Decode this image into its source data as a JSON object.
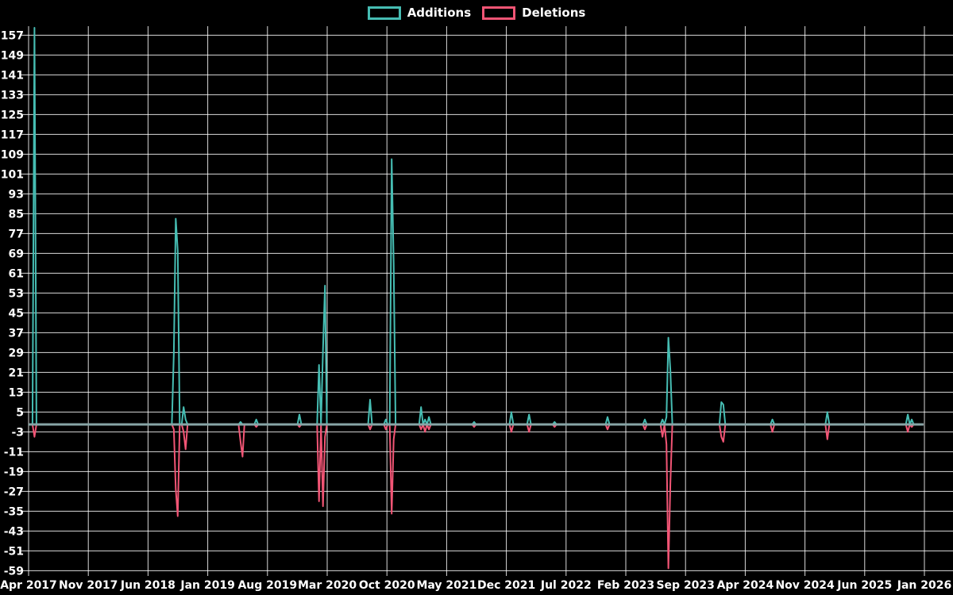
{
  "legend": {
    "additions_label": "Additions",
    "deletions_label": "Deletions"
  },
  "colors": {
    "additions": "#46bdb3",
    "deletions": "#f25575",
    "zero_baseline": "#87a5a6",
    "grid": "#ffffff",
    "background": "#000000",
    "text": "#ffffff"
  },
  "chart_data": {
    "type": "line",
    "title": "",
    "xlabel": "",
    "ylabel": "",
    "legend_position": "top-center",
    "grid": true,
    "y_ticks": [
      157,
      149,
      141,
      133,
      125,
      117,
      109,
      101,
      93,
      85,
      77,
      69,
      61,
      53,
      45,
      37,
      29,
      21,
      13,
      5,
      -3,
      -11,
      -19,
      -27,
      -35,
      -43,
      -51,
      -59
    ],
    "ylim": [
      -59,
      161
    ],
    "x_tick_labels": [
      "Apr 2017",
      "Nov 2017",
      "Jun 2018",
      "Jan 2019",
      "Aug 2019",
      "Mar 2020",
      "Oct 2020",
      "May 2021",
      "Dec 2021",
      "Jul 2022",
      "Feb 2023",
      "Sep 2023",
      "Apr 2024",
      "Nov 2024",
      "Jun 2025",
      "Jan 2026"
    ],
    "weeks_per_x_tick": 30.43,
    "total_weeks": 456,
    "series": [
      {
        "name": "Additions",
        "color": "#46bdb3",
        "baseline_value": 0
      },
      {
        "name": "Deletions",
        "color": "#f25575",
        "baseline_value": 0
      }
    ],
    "note": "Weekly values; flat at 0 except listed events. First additions peak is clipped at the top of the plot (~160).",
    "events": [
      {
        "week": 3,
        "approx_date": "Apr 2017",
        "additions": 160,
        "deletions": -5
      },
      {
        "week": 74,
        "approx_date": "Sep 2018",
        "additions": 29,
        "deletions": -2
      },
      {
        "week": 75,
        "approx_date": "Sep 2018",
        "additions": 83,
        "deletions": -26
      },
      {
        "week": 76,
        "approx_date": "Sep 2018",
        "additions": 70,
        "deletions": -37
      },
      {
        "week": 79,
        "approx_date": "Oct 2018",
        "additions": 7,
        "deletions": -3
      },
      {
        "week": 80,
        "approx_date": "Oct 2018",
        "additions": 2,
        "deletions": -10
      },
      {
        "week": 108,
        "approx_date": "Apr 2019",
        "additions": 1,
        "deletions": -7
      },
      {
        "week": 109,
        "approx_date": "May 2019",
        "additions": 0,
        "deletions": -13
      },
      {
        "week": 116,
        "approx_date": "Jun 2019",
        "additions": 2,
        "deletions": -1
      },
      {
        "week": 138,
        "approx_date": "Nov 2019",
        "additions": 4,
        "deletions": -1
      },
      {
        "week": 148,
        "approx_date": "Feb 2020",
        "additions": 24,
        "deletions": -31
      },
      {
        "week": 150,
        "approx_date": "Feb 2020",
        "additions": 30,
        "deletions": -33
      },
      {
        "week": 151,
        "approx_date": "Mar 2020",
        "additions": 56,
        "deletions": -5
      },
      {
        "week": 174,
        "approx_date": "Aug 2020",
        "additions": 10,
        "deletions": -2
      },
      {
        "week": 182,
        "approx_date": "Sep 2020",
        "additions": 2,
        "deletions": -2
      },
      {
        "week": 185,
        "approx_date": "Oct 2020",
        "additions": 107,
        "deletions": -36
      },
      {
        "week": 186,
        "approx_date": "Oct 2020",
        "additions": 65,
        "deletions": -6
      },
      {
        "week": 200,
        "approx_date": "Jan 2021",
        "additions": 7,
        "deletions": -2
      },
      {
        "week": 202,
        "approx_date": "Feb 2021",
        "additions": 2,
        "deletions": -3
      },
      {
        "week": 204,
        "approx_date": "Feb 2021",
        "additions": 3,
        "deletions": -2
      },
      {
        "week": 227,
        "approx_date": "Aug 2021",
        "additions": 1,
        "deletions": -1
      },
      {
        "week": 246,
        "approx_date": "Dec 2021",
        "additions": 5,
        "deletions": -3
      },
      {
        "week": 255,
        "approx_date": "Feb 2022",
        "additions": 4,
        "deletions": -3
      },
      {
        "week": 268,
        "approx_date": "May 2022",
        "additions": 1,
        "deletions": -1
      },
      {
        "week": 295,
        "approx_date": "Nov 2022",
        "additions": 3,
        "deletions": -2
      },
      {
        "week": 314,
        "approx_date": "Mar 2023",
        "additions": 2,
        "deletions": -2
      },
      {
        "week": 323,
        "approx_date": "May 2023",
        "additions": 2,
        "deletions": -5
      },
      {
        "week": 325,
        "approx_date": "Jun 2023",
        "additions": 3,
        "deletions": -8
      },
      {
        "week": 326,
        "approx_date": "Jun 2023",
        "additions": 35,
        "deletions": -58
      },
      {
        "week": 327,
        "approx_date": "Jun 2023",
        "additions": 22,
        "deletions": -24
      },
      {
        "week": 353,
        "approx_date": "Dec 2023",
        "additions": 9,
        "deletions": -5
      },
      {
        "week": 354,
        "approx_date": "Jan 2024",
        "additions": 8,
        "deletions": -7
      },
      {
        "week": 379,
        "approx_date": "Jul 2024",
        "additions": 2,
        "deletions": -3
      },
      {
        "week": 407,
        "approx_date": "Jan 2025",
        "additions": 5,
        "deletions": -6
      },
      {
        "week": 448,
        "approx_date": "Oct 2025",
        "additions": 4,
        "deletions": -3
      },
      {
        "week": 450,
        "approx_date": "Nov 2025",
        "additions": 2,
        "deletions": -1
      }
    ]
  }
}
